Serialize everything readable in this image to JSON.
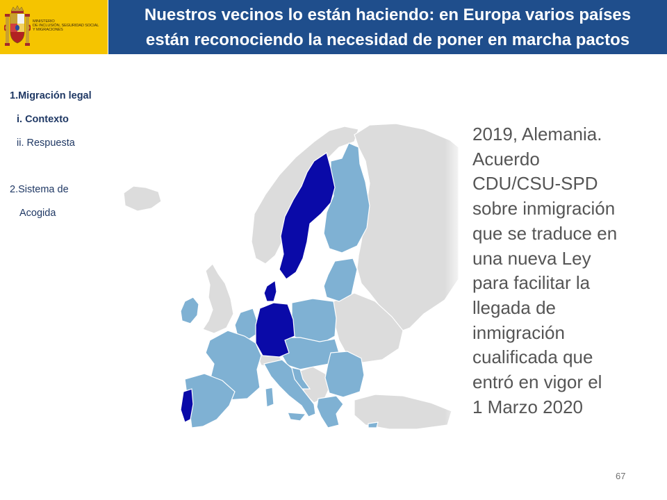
{
  "header": {
    "ministry_lines": [
      "MINISTERIO",
      "DE INCLUSIÓN, SEGURIDAD SOCIAL",
      "Y MIGRACIONES"
    ],
    "title_line1": "Nuestros vecinos lo están haciendo: en Europa varios países",
    "title_line2": "están reconociendo la necesidad de poner en marcha pactos",
    "logo_color": "#f5c400",
    "title_bg_color": "#1f4e8c"
  },
  "nav": {
    "item1": "1.Migración legal",
    "item1_sub1": "i.  Contexto",
    "item1_sub2": "ii. Respuesta",
    "item2_line1": "2.Sistema de",
    "item2_line2": "Acogida"
  },
  "map": {
    "highlight_color": "#0a0aa8",
    "member_color": "#7fb1d3",
    "other_color": "#dcdcdc",
    "highlighted_countries": [
      "Sweden",
      "Denmark",
      "Germany",
      "Portugal"
    ]
  },
  "body": {
    "lines": [
      "2019, Alemania.",
      "Acuerdo",
      "CDU/CSU-SPD",
      "sobre inmigración",
      "que se traduce en",
      "una nueva Ley",
      "para facilitar la",
      "llegada de",
      "inmigración",
      "cualificada que",
      "entró en vigor el",
      "1 Marzo 2020"
    ]
  },
  "page_number": "67"
}
